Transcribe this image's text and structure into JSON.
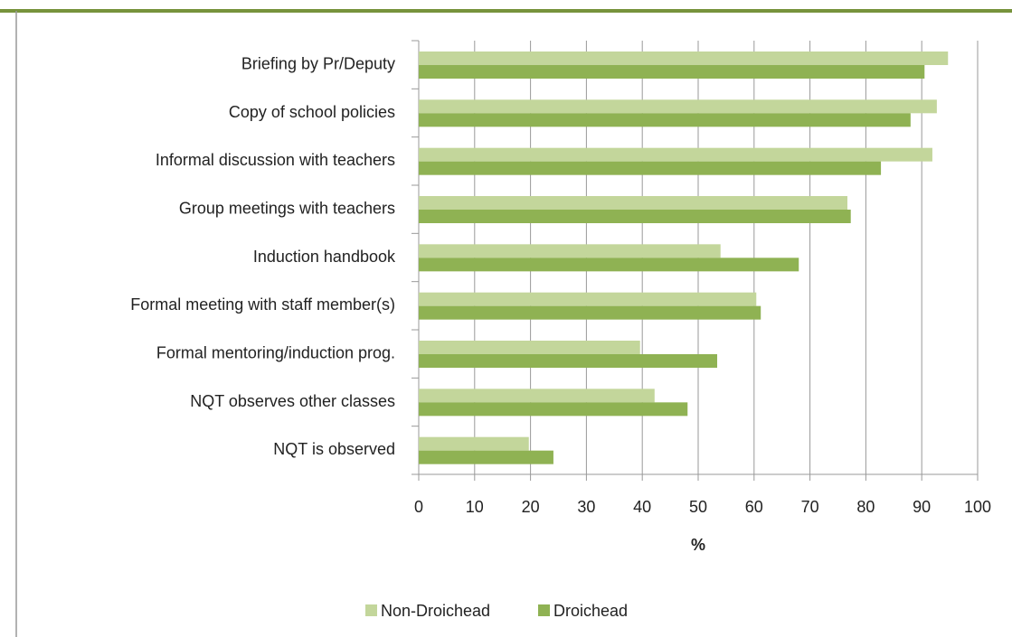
{
  "chart_data": {
    "type": "bar",
    "orientation": "horizontal",
    "categories": [
      "Briefing by Pr/Deputy",
      "Copy of school policies",
      "Informal discussion with teachers",
      "Group meetings with teachers",
      "Induction handbook",
      "Formal meeting with staff member(s)",
      "Formal mentoring/induction prog.",
      "NQT observes other classes",
      "NQT is observed"
    ],
    "series": [
      {
        "name": "Non-Droichead",
        "color": "#c3d69b",
        "values": [
          94.7,
          92.7,
          91.9,
          76.7,
          54,
          60.4,
          39.6,
          42.2,
          19.7
        ]
      },
      {
        "name": "Droichead",
        "color": "#8fb253",
        "values": [
          90.5,
          88,
          82.7,
          77.3,
          68,
          61.2,
          53.4,
          48.1,
          24.1
        ]
      }
    ],
    "x_label": "%",
    "xlim": [
      0,
      100
    ],
    "xticks": [
      0,
      10,
      20,
      30,
      40,
      50,
      60,
      70,
      80,
      90,
      100
    ],
    "grid": true,
    "legend": "bottom"
  }
}
